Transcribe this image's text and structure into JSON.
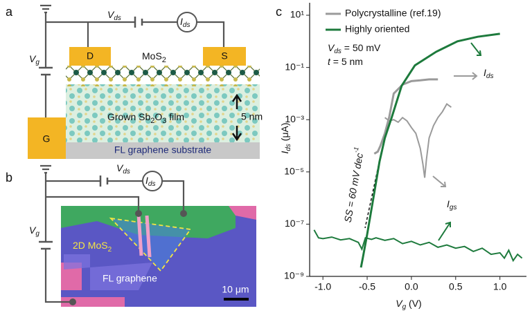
{
  "panel_a": {
    "label": "a",
    "vds": [
      "V",
      "ds"
    ],
    "ids": [
      "I",
      "ds"
    ],
    "vg": [
      "V",
      "g"
    ],
    "drain": "D",
    "source": "S",
    "gate": "G",
    "channel": [
      "MoS",
      "2"
    ],
    "film": [
      "Grown Sb",
      "2",
      "O",
      "3",
      " film"
    ],
    "thickness": "5 nm",
    "substrate": "FL graphene substrate"
  },
  "panel_b": {
    "label": "b",
    "vds": [
      "V",
      "ds"
    ],
    "ids": [
      "I",
      "ds"
    ],
    "vg": [
      "V",
      "g"
    ],
    "flake": [
      "2D MoS",
      "2"
    ],
    "graphene": "FL graphene",
    "scale": "10 μm"
  },
  "panel_c": {
    "label": "c"
  },
  "chart_data": {
    "type": "line",
    "log_y": true,
    "xlabel": [
      "V",
      "g",
      " (V)"
    ],
    "ylabel": [
      "I",
      "ds",
      " (μA)"
    ],
    "xlim": [
      -1.15,
      1.3
    ],
    "ylim": [
      1e-09,
      30
    ],
    "xticks": [
      {
        "value": -1.0,
        "label": "-1.0"
      },
      -0.5,
      {
        "value": 0.0,
        "label": "0.0"
      },
      0.5,
      {
        "value": 1.0,
        "label": "1.0"
      }
    ],
    "yticks": [
      {
        "value": 1e-09,
        "label": "10⁻⁹"
      },
      {
        "value": 1e-07,
        "label": "10⁻⁷"
      },
      {
        "value": 1e-05,
        "label": "10⁻⁵"
      },
      {
        "value": 0.001,
        "label": "10⁻³"
      },
      {
        "value": 0.1,
        "label": "10⁻¹"
      },
      {
        "value": 10,
        "label": "10¹"
      }
    ],
    "legend": "top-left",
    "conditions": [
      [
        "V",
        "ds",
        " = 50 mV"
      ],
      [
        "t",
        " = 5 nm"
      ]
    ],
    "curve_labels": {
      "ids": [
        "I",
        "ds"
      ],
      "igs": [
        "I",
        "gs"
      ]
    },
    "slope_label": [
      "SS = 60 mV dec",
      "-1"
    ],
    "series": [
      {
        "name": "Polycrystalline (ref.19)",
        "color": "#9a9a9a",
        "curves": [
          {
            "x": [
              -0.42,
              -0.38,
              -0.35,
              -0.3,
              -0.25,
              -0.2,
              -0.1,
              0.0,
              0.1,
              0.2,
              0.3
            ],
            "values": [
              5e-05,
              6e-05,
              0.0001,
              0.0003,
              0.0013,
              0.01,
              0.022,
              0.03,
              0.032,
              0.035,
              0.035
            ]
          },
          {
            "x": [
              -0.3,
              -0.25,
              -0.2,
              -0.15,
              -0.1,
              -0.05,
              0.0,
              0.05,
              0.1,
              0.13,
              0.15,
              0.17,
              0.2,
              0.25,
              0.3,
              0.35,
              0.4,
              0.45
            ],
            "values": [
              0.0012,
              0.0009,
              0.001,
              0.0008,
              0.0012,
              0.0009,
              0.0005,
              0.0003,
              8e-05,
              2e-05,
              6e-06,
              3e-05,
              0.0002,
              0.0006,
              0.0012,
              0.002,
              0.004,
              0.003
            ]
          }
        ]
      },
      {
        "name": "Highly oriented",
        "color": "#1d7a3c",
        "curves": [
          {
            "x": [
              -0.57,
              -0.55,
              -0.5,
              -0.43,
              -0.36,
              -0.3,
              -0.22,
              -0.11,
              0.04,
              0.28,
              0.52,
              0.75,
              1.0
            ],
            "values": [
              2.2e-09,
              5e-09,
              4e-08,
              1e-06,
              2.5e-05,
              0.0002,
              0.0013,
              0.02,
              0.12,
              0.4,
              1,
              1.5,
              1.95
            ]
          },
          {
            "x": [
              -1.1,
              -1.05,
              -1.0,
              -0.9,
              -0.8,
              -0.7,
              -0.6,
              -0.56,
              -0.52,
              -0.45,
              -0.4,
              -0.3,
              -0.2,
              -0.1,
              0.0,
              0.1,
              0.2,
              0.3,
              0.4,
              0.5,
              0.6,
              0.7,
              0.8,
              0.9,
              1.0,
              1.05,
              1.1,
              1.15,
              1.2,
              1.25
            ],
            "values": [
              6e-08,
              3e-08,
              2.8e-08,
              3.2e-08,
              2.5e-08,
              2.8e-08,
              2e-08,
              1.1e-08,
              3e-08,
              2.6e-08,
              3e-08,
              2.4e-08,
              2.8e-08,
              1.8e-08,
              2.2e-08,
              1.6e-08,
              2e-08,
              1.3e-08,
              1.6e-08,
              1.2e-08,
              1.4e-08,
              9e-09,
              1.2e-08,
              7e-09,
              8e-09,
              5e-09,
              1e-08,
              4e-09,
              7e-09,
              5e-09
            ]
          }
        ]
      }
    ]
  }
}
